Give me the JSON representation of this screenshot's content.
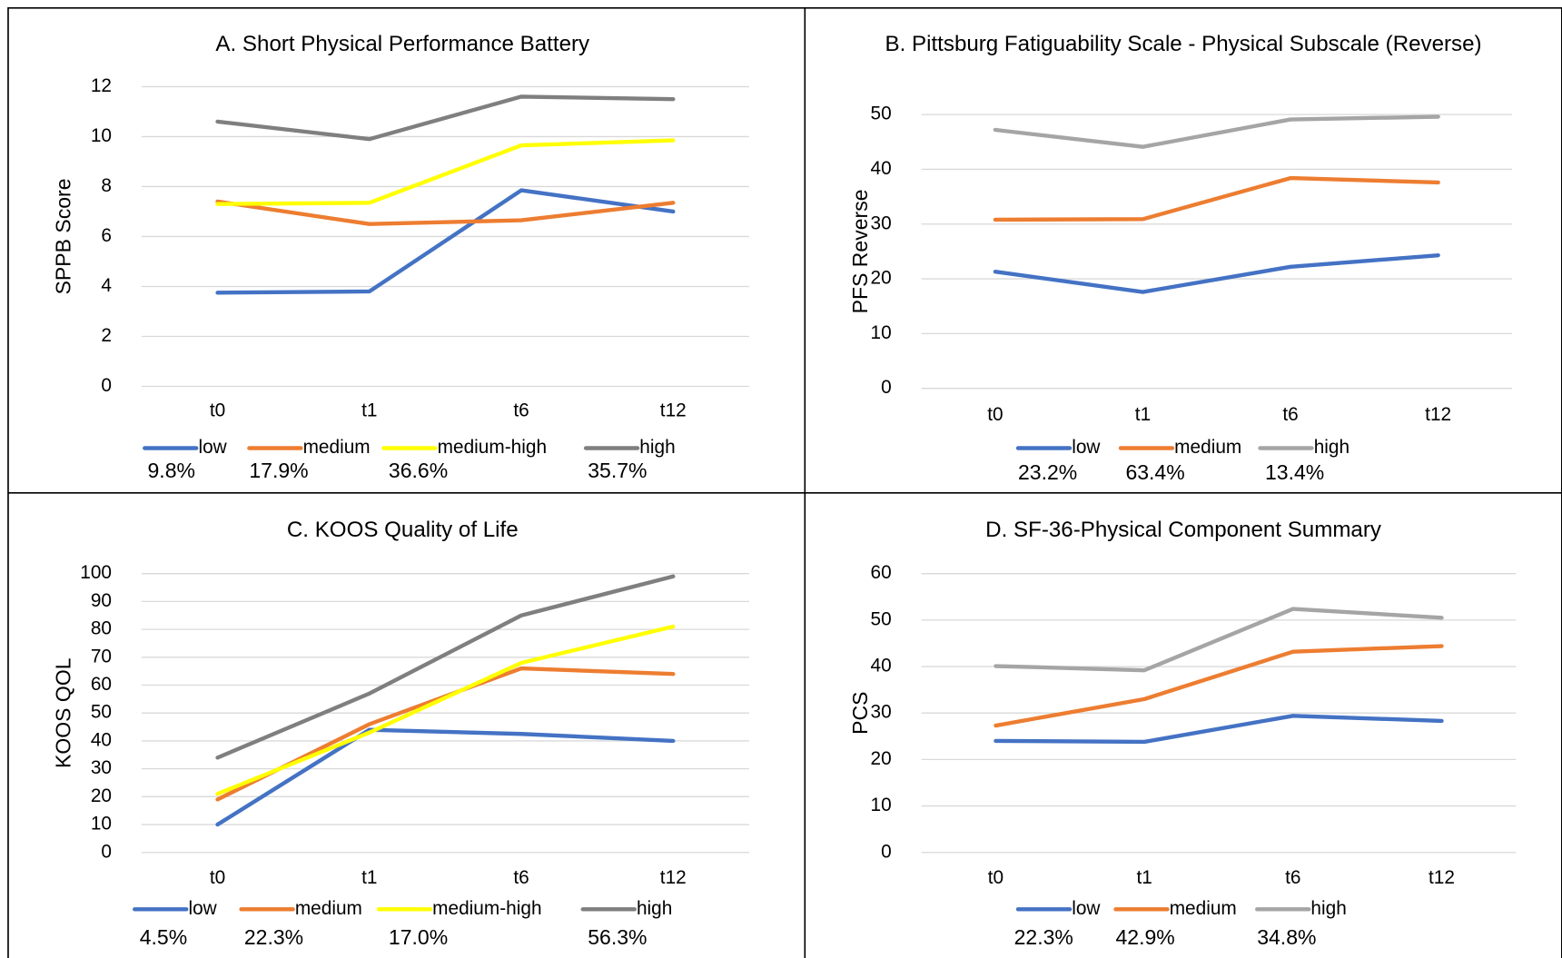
{
  "chart_data": [
    {
      "type": "line",
      "title": "A. Short Physical Performance Battery",
      "y_label": "SPPB Score",
      "categories": [
        "t0",
        "t1",
        "t6",
        "t12"
      ],
      "ylim": [
        0,
        12
      ],
      "yticks": [
        0,
        2,
        4,
        6,
        8,
        10,
        12
      ],
      "grid": true,
      "series": [
        {
          "name": "low",
          "color": "#4472c4",
          "values": [
            3.75,
            3.8,
            7.85,
            7.0
          ]
        },
        {
          "name": "medium",
          "color": "#ed7d31",
          "values": [
            7.4,
            6.5,
            6.65,
            7.35
          ]
        },
        {
          "name": "medium-high",
          "color": "#ffff00",
          "values": [
            7.3,
            7.35,
            9.65,
            9.85
          ]
        },
        {
          "name": "high",
          "color": "#7f7f7f",
          "values": [
            10.6,
            9.9,
            11.6,
            11.5
          ]
        }
      ],
      "shares": [
        "9.8%",
        "17.9%",
        "36.6%",
        "35.7%"
      ]
    },
    {
      "type": "line",
      "title": "B. Pittsburg Fatiguability Scale - Physical Subscale (Reverse)",
      "y_label": "PFS Reverse",
      "categories": [
        "t0",
        "t1",
        "t6",
        "t12"
      ],
      "ylim": [
        0,
        50
      ],
      "yticks": [
        0,
        10,
        20,
        30,
        40,
        50
      ],
      "grid": true,
      "series": [
        {
          "name": "low",
          "color": "#4472c4",
          "values": [
            21.3,
            17.6,
            22.2,
            24.3
          ]
        },
        {
          "name": "medium",
          "color": "#ed7d31",
          "values": [
            30.8,
            30.9,
            38.4,
            37.6
          ]
        },
        {
          "name": "high",
          "color": "#a5a5a5",
          "values": [
            47.2,
            44.1,
            49.1,
            49.6
          ]
        }
      ],
      "shares": [
        "23.2%",
        "63.4%",
        "13.4%"
      ]
    },
    {
      "type": "line",
      "title": "C. KOOS Quality of Life",
      "y_label": "KOOS QOL",
      "categories": [
        "t0",
        "t1",
        "t6",
        "t12"
      ],
      "ylim": [
        0,
        100
      ],
      "yticks": [
        0,
        10,
        20,
        30,
        40,
        50,
        60,
        70,
        80,
        90,
        100
      ],
      "grid": true,
      "series": [
        {
          "name": "low",
          "color": "#4472c4",
          "values": [
            10,
            44,
            42.5,
            40
          ]
        },
        {
          "name": "medium",
          "color": "#ed7d31",
          "values": [
            19,
            46,
            66,
            64
          ]
        },
        {
          "name": "medium-high",
          "color": "#ffff00",
          "values": [
            21,
            43,
            68,
            81
          ]
        },
        {
          "name": "high",
          "color": "#7f7f7f",
          "values": [
            34,
            57,
            85,
            99
          ]
        }
      ],
      "shares": [
        "4.5%",
        "22.3%",
        "17.0%",
        "56.3%"
      ]
    },
    {
      "type": "line",
      "title": "D. SF-36-Physical Component Summary",
      "y_label": "PCS",
      "categories": [
        "t0",
        "t1",
        "t6",
        "t12"
      ],
      "ylim": [
        0,
        60
      ],
      "yticks": [
        0,
        10,
        20,
        30,
        40,
        50,
        60
      ],
      "grid": true,
      "series": [
        {
          "name": "low",
          "color": "#4472c4",
          "values": [
            24,
            23.8,
            29.4,
            28.3
          ]
        },
        {
          "name": "medium",
          "color": "#ed7d31",
          "values": [
            27.3,
            33,
            43.2,
            44.4
          ]
        },
        {
          "name": "high",
          "color": "#a5a5a5",
          "values": [
            40.1,
            39.2,
            52.4,
            50.5
          ]
        }
      ],
      "shares": [
        "22.3%",
        "42.9%",
        "34.8%"
      ]
    }
  ]
}
